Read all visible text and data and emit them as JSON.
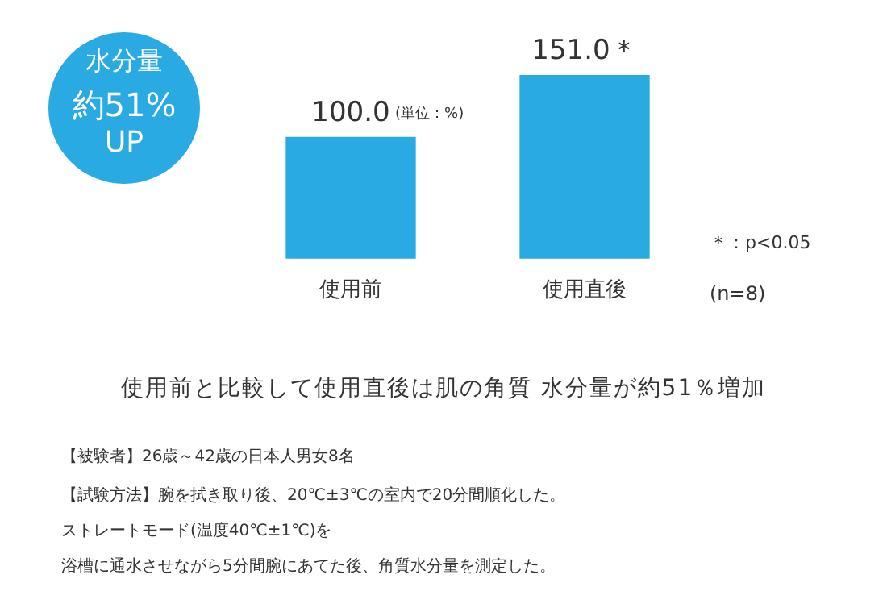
{
  "chart_data": {
    "type": "bar",
    "title": "使用前と比較して使用直後は肌の角質 水分量が約51％増加",
    "categories": [
      "使用前",
      "使用直後"
    ],
    "values": [
      100.0,
      151.0
    ],
    "value_labels": [
      "100.0",
      "151.0＊"
    ],
    "color": "#29aae2",
    "annotations": [
      "水分量",
      "約51%",
      "UP",
      "(単位：%)",
      "＊：p<0.05",
      "(n=8)",
      "【被験者】26歳～42歳の日本人男女8名",
      "【試験方法】腕を拭き取り後、20℃±3℃の室内で20分間順化した。",
      "ストレートモード(温度40℃±1℃)を",
      "浴槽に通水させながら5分間腕にあてた後、角質水分量を測定した。"
    ]
  }
}
